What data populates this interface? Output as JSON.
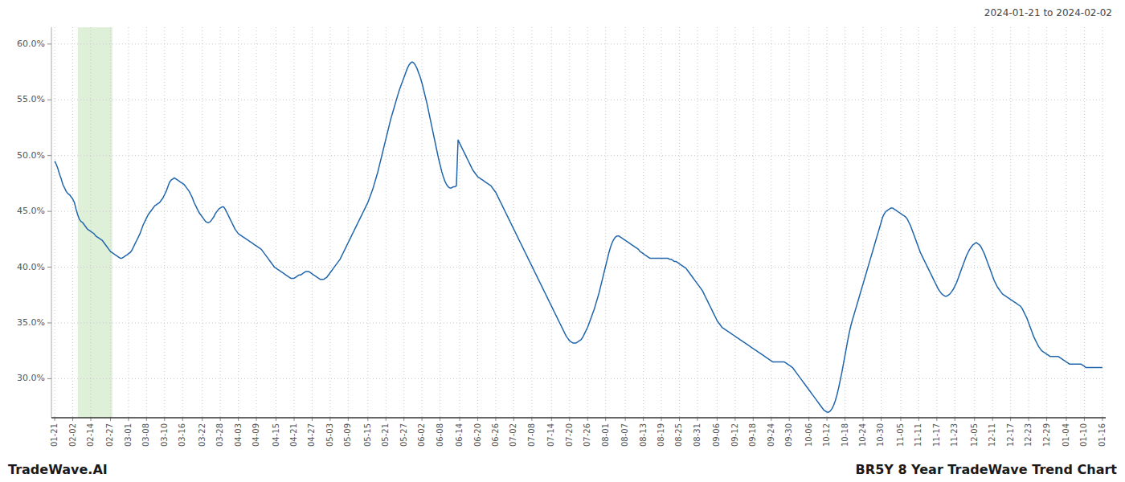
{
  "chart_data": {
    "type": "line",
    "title": "BR5Y 8 Year TradeWave Trend Chart",
    "subtitle": "2024-01-21 to 2024-02-02",
    "annotations": [
      "TradeWave.AI"
    ],
    "color": "#2166ac",
    "grid": true,
    "ylim": [
      0.265,
      0.615
    ],
    "yticks": [
      {
        "value": 0.3,
        "label": "30.0%"
      },
      {
        "value": 0.35,
        "label": "35.0%"
      },
      {
        "value": 0.4,
        "label": "40.0%"
      },
      {
        "value": 0.45,
        "label": "45.0%"
      },
      {
        "value": 0.5,
        "label": "50.0%"
      },
      {
        "value": 0.55,
        "label": "55.0%"
      },
      {
        "value": 0.6,
        "label": "60.0%"
      }
    ],
    "highlight": {
      "start": 14.058,
      "end": 35.145,
      "color": "#dff0d8"
    },
    "categories": [
      "01-21",
      null,
      null,
      null,
      null,
      null,
      null,
      null,
      null,
      null,
      null,
      "02-02",
      null,
      null,
      null,
      null,
      null,
      null,
      null,
      null,
      null,
      null,
      "02-14",
      null,
      null,
      null,
      null,
      null,
      null,
      null,
      null,
      null,
      null,
      null,
      "02-27",
      null,
      null,
      null,
      null,
      null,
      null,
      null,
      null,
      null,
      null,
      "03-01",
      null,
      null,
      null,
      null,
      null,
      null,
      null,
      null,
      null,
      null,
      "03-08",
      null,
      null,
      null,
      null,
      null,
      null,
      null,
      null,
      null,
      null,
      "03-10",
      null,
      null,
      null,
      null,
      null,
      null,
      null,
      null,
      null,
      null,
      "03-16",
      null,
      null,
      null,
      null,
      null,
      null,
      null,
      null,
      null,
      null,
      null,
      "03-22",
      null,
      null,
      null,
      null,
      null,
      null,
      null,
      null,
      null,
      null,
      "03-28",
      null,
      null,
      null,
      null,
      null,
      null,
      null,
      null,
      null,
      null,
      "04-03",
      null,
      null,
      null,
      null,
      null,
      null,
      null,
      null,
      null,
      null,
      "04-09",
      null,
      null,
      null,
      null,
      null,
      null,
      null,
      null,
      null,
      null,
      null,
      "04-15",
      null,
      null,
      null,
      null,
      null,
      null,
      null,
      null,
      null,
      null,
      "04-21",
      null,
      null,
      null,
      null,
      null,
      null,
      null,
      null,
      null,
      null,
      "04-27",
      null,
      null,
      null,
      null,
      null,
      null,
      null,
      null,
      null,
      null,
      "05-03",
      null,
      null,
      null,
      null,
      null,
      null,
      null,
      null,
      null,
      null,
      "05-09",
      null,
      null,
      null,
      null,
      null,
      null,
      null,
      null,
      null,
      null,
      null,
      "05-15",
      null,
      null,
      null,
      null,
      null,
      null,
      null,
      null,
      null,
      null,
      "05-21",
      null,
      null,
      null,
      null,
      null,
      null,
      null,
      null,
      null,
      null,
      "05-27",
      null,
      null,
      null,
      null,
      null,
      null,
      null,
      null,
      null,
      null,
      "06-02",
      null,
      null,
      null,
      null,
      null,
      null,
      null,
      null,
      null,
      null,
      "06-08",
      null,
      null,
      null,
      null,
      null,
      null,
      null,
      null,
      null,
      null,
      null,
      "06-14",
      null,
      null,
      null,
      null,
      null,
      null,
      null,
      null,
      null,
      null,
      "06-20",
      null,
      null,
      null,
      null,
      null,
      null,
      null,
      null,
      null,
      null,
      "06-26",
      null,
      null,
      null,
      null,
      null,
      null,
      null,
      null,
      null,
      null,
      "07-02",
      null,
      null,
      null,
      null,
      null,
      null,
      null,
      null,
      null,
      null,
      "07-08",
      null,
      null,
      null,
      null,
      null,
      null,
      null,
      null,
      null,
      null,
      null,
      "07-14",
      null,
      null,
      null,
      null,
      null,
      null,
      null,
      null,
      null,
      null,
      "07-20",
      null,
      null,
      null,
      null,
      null,
      null,
      null,
      null,
      null,
      null,
      "07-26",
      null,
      null,
      null,
      null,
      null,
      null,
      null,
      null,
      null,
      null,
      "08-01",
      null,
      null,
      null,
      null,
      null,
      null,
      null,
      null,
      null,
      null,
      null,
      "08-07",
      null,
      null,
      null,
      null,
      null,
      null,
      null,
      null,
      null,
      null,
      "08-13",
      null,
      null,
      null,
      null,
      null,
      null,
      null,
      null,
      null,
      null,
      "08-19",
      null,
      null,
      null,
      null,
      null,
      null,
      null,
      null,
      null,
      null,
      "08-25",
      null,
      null,
      null,
      null,
      null,
      null,
      null,
      null,
      null,
      null,
      "08-31",
      null,
      null,
      null,
      null,
      null,
      null,
      null,
      null,
      null,
      null,
      null,
      "09-06",
      null,
      null,
      null,
      null,
      null,
      null,
      null,
      null,
      null,
      null,
      "09-12",
      null,
      null,
      null,
      null,
      null,
      null,
      null,
      null,
      null,
      null,
      "09-18",
      null,
      null,
      null,
      null,
      null,
      null,
      null,
      null,
      null,
      null,
      "09-24",
      null,
      null,
      null,
      null,
      null,
      null,
      null,
      null,
      null,
      null,
      "09-30",
      null,
      null,
      null,
      null,
      null,
      null,
      null,
      null,
      null,
      null,
      null,
      "10-06",
      null,
      null,
      null,
      null,
      null,
      null,
      null,
      null,
      null,
      null,
      "10-12",
      null,
      null,
      null,
      null,
      null,
      null,
      null,
      null,
      null,
      null,
      "10-18",
      null,
      null,
      null,
      null,
      null,
      null,
      null,
      null,
      null,
      null,
      "10-24",
      null,
      null,
      null,
      null,
      null,
      null,
      null,
      null,
      null,
      null,
      "10-30",
      null,
      null,
      null,
      null,
      null,
      null,
      null,
      null,
      null,
      null,
      null,
      "11-05",
      null,
      null,
      null,
      null,
      null,
      null,
      null,
      null,
      null,
      null,
      "11-11",
      null,
      null,
      null,
      null,
      null,
      null,
      null,
      null,
      null,
      null,
      "11-17",
      null,
      null,
      null,
      null,
      null,
      null,
      null,
      null,
      null,
      null,
      "11-23",
      null,
      null,
      null,
      null,
      null,
      null,
      null,
      null,
      null,
      null,
      null,
      "12-05",
      null,
      null,
      null,
      null,
      null,
      null,
      null,
      null,
      null,
      null,
      "12-11",
      null,
      null,
      null,
      null,
      null,
      null,
      null,
      null,
      null,
      null,
      "12-17",
      null,
      null,
      null,
      null,
      null,
      null,
      null,
      null,
      null,
      null,
      "12-23",
      null,
      null,
      null,
      null,
      null,
      null,
      null,
      null,
      null,
      null,
      "12-29",
      null,
      null,
      null,
      null,
      null,
      null,
      null,
      null,
      null,
      null,
      null,
      "01-04",
      null,
      null,
      null,
      null,
      null,
      null,
      null,
      null,
      null,
      null,
      "01-10",
      null,
      null,
      null,
      null,
      null,
      null,
      null,
      null,
      null,
      null,
      "01-16"
    ],
    "values": [
      0.495,
      0.492,
      0.488,
      0.483,
      0.479,
      0.474,
      0.471,
      0.468,
      0.466,
      0.465,
      0.463,
      0.461,
      0.458,
      0.452,
      0.447,
      0.443,
      0.441,
      0.44,
      0.438,
      0.436,
      0.434,
      0.433,
      0.432,
      0.431,
      0.43,
      0.428,
      0.427,
      0.426,
      0.425,
      0.424,
      0.422,
      0.42,
      0.418,
      0.416,
      0.414,
      0.413,
      0.412,
      0.411,
      0.41,
      0.409,
      0.408,
      0.408,
      0.409,
      0.41,
      0.411,
      0.412,
      0.413,
      0.415,
      0.418,
      0.421,
      0.424,
      0.427,
      0.43,
      0.434,
      0.438,
      0.441,
      0.444,
      0.447,
      0.449,
      0.451,
      0.453,
      0.455,
      0.456,
      0.457,
      0.458,
      0.46,
      0.462,
      0.465,
      0.468,
      0.472,
      0.476,
      0.478,
      0.479,
      0.48,
      0.479,
      0.478,
      0.477,
      0.476,
      0.475,
      0.474,
      0.472,
      0.47,
      0.468,
      0.465,
      0.462,
      0.458,
      0.455,
      0.452,
      0.449,
      0.447,
      0.445,
      0.443,
      0.441,
      0.44,
      0.44,
      0.441,
      0.443,
      0.445,
      0.448,
      0.45,
      0.452,
      0.453,
      0.454,
      0.454,
      0.452,
      0.449,
      0.446,
      0.443,
      0.44,
      0.437,
      0.434,
      0.432,
      0.43,
      0.429,
      0.428,
      0.427,
      0.426,
      0.425,
      0.424,
      0.423,
      0.422,
      0.421,
      0.42,
      0.419,
      0.418,
      0.417,
      0.416,
      0.414,
      0.412,
      0.41,
      0.408,
      0.406,
      0.404,
      0.402,
      0.4,
      0.399,
      0.398,
      0.397,
      0.396,
      0.395,
      0.394,
      0.393,
      0.392,
      0.391,
      0.39,
      0.39,
      0.39,
      0.391,
      0.392,
      0.393,
      0.393,
      0.394,
      0.395,
      0.396,
      0.396,
      0.396,
      0.395,
      0.394,
      0.393,
      0.392,
      0.391,
      0.39,
      0.389,
      0.389,
      0.389,
      0.39,
      0.391,
      0.393,
      0.395,
      0.397,
      0.399,
      0.401,
      0.403,
      0.405,
      0.407,
      0.41,
      0.413,
      0.416,
      0.419,
      0.422,
      0.425,
      0.428,
      0.431,
      0.434,
      0.437,
      0.44,
      0.443,
      0.446,
      0.449,
      0.452,
      0.455,
      0.458,
      0.462,
      0.466,
      0.47,
      0.475,
      0.48,
      0.485,
      0.491,
      0.497,
      0.503,
      0.509,
      0.515,
      0.521,
      0.527,
      0.533,
      0.538,
      0.543,
      0.548,
      0.553,
      0.558,
      0.562,
      0.566,
      0.57,
      0.574,
      0.578,
      0.581,
      0.583,
      0.584,
      0.583,
      0.581,
      0.578,
      0.574,
      0.57,
      0.565,
      0.559,
      0.553,
      0.547,
      0.54,
      0.533,
      0.526,
      0.519,
      0.512,
      0.505,
      0.498,
      0.492,
      0.486,
      0.481,
      0.477,
      0.474,
      0.472,
      0.471,
      0.471,
      0.472,
      0.472,
      0.473,
      0.514,
      0.511,
      0.508,
      0.505,
      0.502,
      0.499,
      0.496,
      0.493,
      0.49,
      0.487,
      0.485,
      0.483,
      0.481,
      0.48,
      0.479,
      0.478,
      0.477,
      0.476,
      0.475,
      0.474,
      0.473,
      0.471,
      0.469,
      0.467,
      0.464,
      0.461,
      0.458,
      0.455,
      0.452,
      0.449,
      0.446,
      0.443,
      0.44,
      0.437,
      0.434,
      0.431,
      0.428,
      0.425,
      0.422,
      0.419,
      0.416,
      0.413,
      0.41,
      0.407,
      0.404,
      0.401,
      0.398,
      0.395,
      0.392,
      0.389,
      0.386,
      0.383,
      0.38,
      0.377,
      0.374,
      0.371,
      0.368,
      0.365,
      0.362,
      0.359,
      0.356,
      0.353,
      0.35,
      0.347,
      0.344,
      0.341,
      0.338,
      0.336,
      0.334,
      0.333,
      0.332,
      0.332,
      0.332,
      0.333,
      0.334,
      0.335,
      0.337,
      0.34,
      0.343,
      0.346,
      0.35,
      0.354,
      0.358,
      0.362,
      0.367,
      0.372,
      0.377,
      0.383,
      0.389,
      0.395,
      0.401,
      0.407,
      0.413,
      0.418,
      0.422,
      0.425,
      0.427,
      0.428,
      0.428,
      0.427,
      0.426,
      0.425,
      0.424,
      0.423,
      0.422,
      0.421,
      0.42,
      0.419,
      0.418,
      0.417,
      0.416,
      0.414,
      0.413,
      0.412,
      0.411,
      0.41,
      0.409,
      0.408,
      0.408,
      0.408,
      0.408,
      0.408,
      0.408,
      0.408,
      0.408,
      0.408,
      0.408,
      0.408,
      0.408,
      0.407,
      0.407,
      0.406,
      0.405,
      0.405,
      0.404,
      0.403,
      0.402,
      0.401,
      0.4,
      0.399,
      0.397,
      0.395,
      0.393,
      0.391,
      0.389,
      0.387,
      0.385,
      0.383,
      0.381,
      0.379,
      0.376,
      0.373,
      0.37,
      0.367,
      0.364,
      0.361,
      0.358,
      0.355,
      0.352,
      0.35,
      0.348,
      0.346,
      0.345,
      0.344,
      0.343,
      0.342,
      0.341,
      0.34,
      0.339,
      0.338,
      0.337,
      0.336,
      0.335,
      0.334,
      0.333,
      0.332,
      0.331,
      0.33,
      0.329,
      0.328,
      0.327,
      0.326,
      0.325,
      0.324,
      0.323,
      0.322,
      0.321,
      0.32,
      0.319,
      0.318,
      0.317,
      0.316,
      0.315,
      0.315,
      0.315,
      0.315,
      0.315,
      0.315,
      0.315,
      0.315,
      0.314,
      0.313,
      0.312,
      0.311,
      0.31,
      0.308,
      0.306,
      0.304,
      0.302,
      0.3,
      0.298,
      0.296,
      0.294,
      0.292,
      0.29,
      0.288,
      0.286,
      0.284,
      0.282,
      0.28,
      0.278,
      0.276,
      0.274,
      0.272,
      0.271,
      0.27,
      0.27,
      0.271,
      0.273,
      0.276,
      0.28,
      0.285,
      0.291,
      0.298,
      0.305,
      0.313,
      0.321,
      0.329,
      0.337,
      0.344,
      0.35,
      0.355,
      0.36,
      0.365,
      0.37,
      0.375,
      0.38,
      0.385,
      0.39,
      0.395,
      0.4,
      0.405,
      0.41,
      0.415,
      0.42,
      0.425,
      0.43,
      0.435,
      0.44,
      0.445,
      0.448,
      0.45,
      0.451,
      0.452,
      0.453,
      0.453,
      0.452,
      0.451,
      0.45,
      0.449,
      0.448,
      0.447,
      0.446,
      0.445,
      0.443,
      0.44,
      0.437,
      0.433,
      0.429,
      0.425,
      0.421,
      0.417,
      0.413,
      0.41,
      0.407,
      0.404,
      0.401,
      0.398,
      0.395,
      0.392,
      0.389,
      0.386,
      0.383,
      0.38,
      0.378,
      0.376,
      0.375,
      0.374,
      0.374,
      0.375,
      0.376,
      0.378,
      0.38,
      0.383,
      0.386,
      0.39,
      0.394,
      0.398,
      0.402,
      0.406,
      0.41,
      0.413,
      0.416,
      0.418,
      0.42,
      0.421,
      0.422,
      0.421,
      0.42,
      0.418,
      0.415,
      0.412,
      0.408,
      0.404,
      0.4,
      0.396,
      0.392,
      0.388,
      0.385,
      0.382,
      0.38,
      0.378,
      0.376,
      0.375,
      0.374,
      0.373,
      0.372,
      0.371,
      0.37,
      0.369,
      0.368,
      0.367,
      0.366,
      0.365,
      0.363,
      0.36,
      0.357,
      0.354,
      0.35,
      0.346,
      0.342,
      0.338,
      0.335,
      0.332,
      0.329,
      0.327,
      0.325,
      0.324,
      0.323,
      0.322,
      0.321,
      0.32,
      0.32,
      0.32,
      0.32,
      0.32,
      0.32,
      0.319,
      0.318,
      0.317,
      0.316,
      0.315,
      0.314,
      0.313,
      0.313,
      0.313,
      0.313,
      0.313,
      0.313,
      0.313,
      0.313,
      0.312,
      0.311,
      0.31,
      0.31,
      0.31,
      0.31,
      0.31,
      0.31,
      0.31,
      0.31,
      0.31,
      0.31,
      0.31
    ]
  }
}
